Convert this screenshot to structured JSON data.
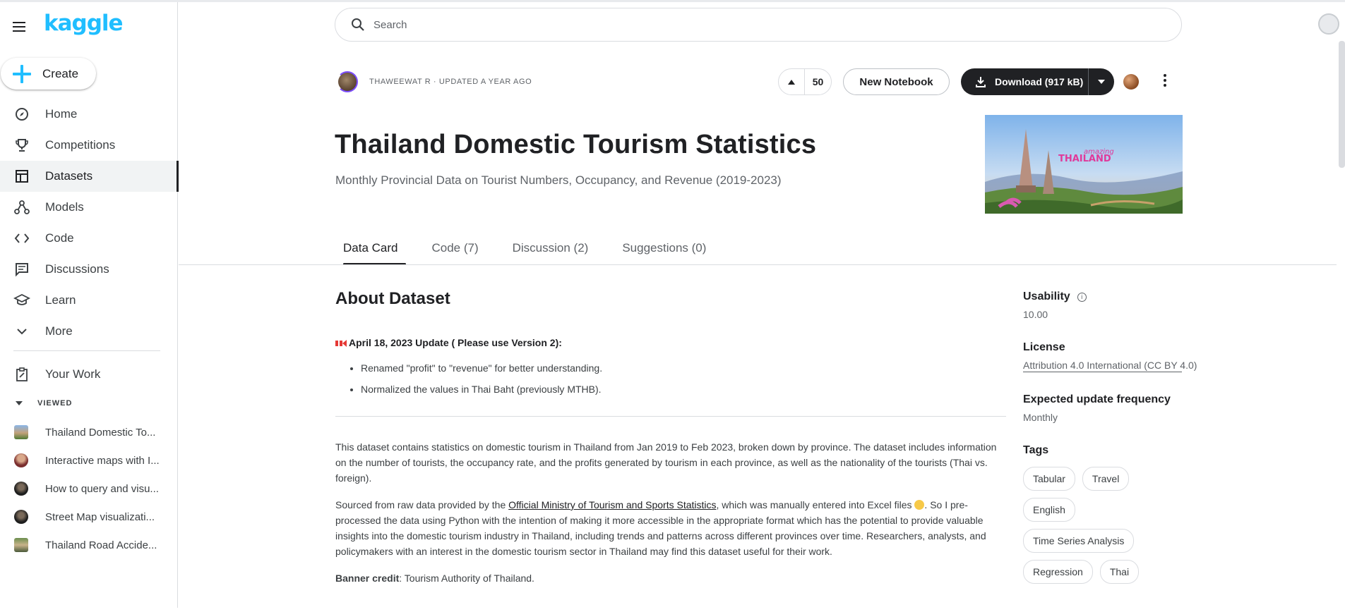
{
  "sidebar": {
    "logo": "kaggle",
    "create_label": "Create",
    "nav": [
      {
        "label": "Home",
        "icon": "compass-icon"
      },
      {
        "label": "Competitions",
        "icon": "trophy-icon"
      },
      {
        "label": "Datasets",
        "icon": "table-icon",
        "active": true
      },
      {
        "label": "Models",
        "icon": "models-icon"
      },
      {
        "label": "Code",
        "icon": "code-icon"
      },
      {
        "label": "Discussions",
        "icon": "comment-icon"
      },
      {
        "label": "Learn",
        "icon": "school-icon"
      },
      {
        "label": "More",
        "icon": "chevron-down-icon"
      }
    ],
    "your_work": "Your Work",
    "viewed_header": "VIEWED",
    "recent": [
      "Thailand Domestic To...",
      "Interactive maps with I...",
      "How to query and visu...",
      "Street Map visualizati...",
      "Thailand Road Accide..."
    ]
  },
  "search": {
    "placeholder": "Search"
  },
  "dataset": {
    "owner_meta": "THAWEEWAT R · UPDATED A YEAR AGO",
    "votes": "50",
    "new_notebook": "New Notebook",
    "download": "Download (917 kB)",
    "title": "Thailand Domestic Tourism Statistics",
    "subtitle": "Monthly Provincial Data on Tourist Numbers, Occupancy, and Revenue (2019-2023)",
    "banner_text_small": "amazing",
    "banner_text_big": "THAILAND"
  },
  "tabs": [
    "Data Card",
    "Code (7)",
    "Discussion (2)",
    "Suggestions (0)"
  ],
  "about": {
    "heading": "About Dataset",
    "update_title": "April 18, 2023 Update ( Please use Version 2):",
    "bullets": [
      "Renamed \"profit\" to \"revenue\" for better understanding.",
      "Normalized the values in Thai Baht (previously MTHB)."
    ],
    "para1": "This dataset contains statistics on domestic tourism in Thailand from Jan 2019 to Feb 2023, broken down by province. The dataset includes information on the number of tourists, the occupancy rate, and the profits generated by tourism in each province, as well as the nationality of the tourists (Thai vs. foreign).",
    "para2_before": "Sourced from raw data provided by the ",
    "para2_link": "Official Ministry of Tourism and Sports Statistics",
    "para2_after": ", which was manually entered into Excel files ",
    "para2_rest": ". So I pre-processed the data using Python with the intention of making it more accessible in the appropriate format which has the potential to provide valuable insights into the domestic tourism industry in Thailand, including trends and patterns across different provinces over time. Researchers, analysts, and policymakers with an interest in the domestic tourism sector in Thailand may find this dataset useful for their work.",
    "credit_label": "Banner credit",
    "credit_value": ": Tourism Authority of Thailand."
  },
  "rail": {
    "usability_label": "Usability",
    "usability_value": "10.00",
    "license_label": "License",
    "license_value": "Attribution 4.0 International (CC BY 4.0)",
    "frequency_label": "Expected update frequency",
    "frequency_value": "Monthly",
    "tags_label": "Tags",
    "tags": [
      "Tabular",
      "Travel",
      "English",
      "Time Series Analysis",
      "Regression",
      "Thai"
    ]
  }
}
